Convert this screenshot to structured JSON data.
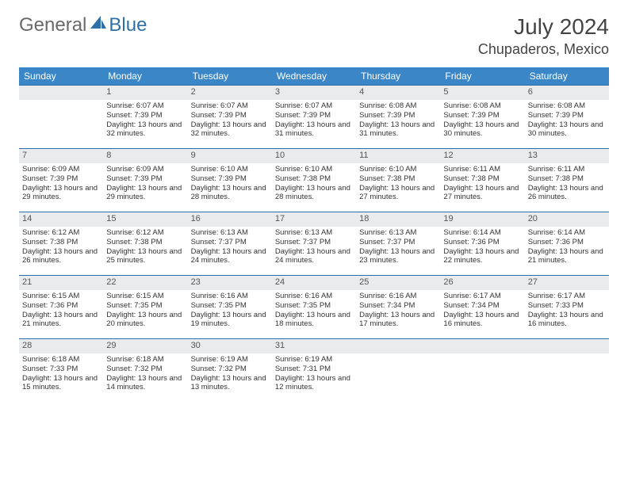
{
  "logo": {
    "word1": "General",
    "word2": "Blue"
  },
  "title": "July 2024",
  "location": "Chupaderos, Mexico",
  "colors": {
    "header_bg": "#3b86c7",
    "header_text": "#ffffff",
    "daynum_bg": "#e9ebec",
    "rule": "#2f6fa7",
    "logo_gray": "#6a6a6a",
    "logo_blue": "#2f6fa7",
    "sail_fill": "#2f6fa7"
  },
  "weekdays": [
    "Sunday",
    "Monday",
    "Tuesday",
    "Wednesday",
    "Thursday",
    "Friday",
    "Saturday"
  ],
  "weeks": [
    [
      {
        "empty": true
      },
      {
        "n": "1",
        "sunrise": "6:07 AM",
        "sunset": "7:39 PM",
        "dl": "13 hours and 32 minutes."
      },
      {
        "n": "2",
        "sunrise": "6:07 AM",
        "sunset": "7:39 PM",
        "dl": "13 hours and 32 minutes."
      },
      {
        "n": "3",
        "sunrise": "6:07 AM",
        "sunset": "7:39 PM",
        "dl": "13 hours and 31 minutes."
      },
      {
        "n": "4",
        "sunrise": "6:08 AM",
        "sunset": "7:39 PM",
        "dl": "13 hours and 31 minutes."
      },
      {
        "n": "5",
        "sunrise": "6:08 AM",
        "sunset": "7:39 PM",
        "dl": "13 hours and 30 minutes."
      },
      {
        "n": "6",
        "sunrise": "6:08 AM",
        "sunset": "7:39 PM",
        "dl": "13 hours and 30 minutes."
      }
    ],
    [
      {
        "n": "7",
        "sunrise": "6:09 AM",
        "sunset": "7:39 PM",
        "dl": "13 hours and 29 minutes."
      },
      {
        "n": "8",
        "sunrise": "6:09 AM",
        "sunset": "7:39 PM",
        "dl": "13 hours and 29 minutes."
      },
      {
        "n": "9",
        "sunrise": "6:10 AM",
        "sunset": "7:39 PM",
        "dl": "13 hours and 28 minutes."
      },
      {
        "n": "10",
        "sunrise": "6:10 AM",
        "sunset": "7:38 PM",
        "dl": "13 hours and 28 minutes."
      },
      {
        "n": "11",
        "sunrise": "6:10 AM",
        "sunset": "7:38 PM",
        "dl": "13 hours and 27 minutes."
      },
      {
        "n": "12",
        "sunrise": "6:11 AM",
        "sunset": "7:38 PM",
        "dl": "13 hours and 27 minutes."
      },
      {
        "n": "13",
        "sunrise": "6:11 AM",
        "sunset": "7:38 PM",
        "dl": "13 hours and 26 minutes."
      }
    ],
    [
      {
        "n": "14",
        "sunrise": "6:12 AM",
        "sunset": "7:38 PM",
        "dl": "13 hours and 26 minutes."
      },
      {
        "n": "15",
        "sunrise": "6:12 AM",
        "sunset": "7:38 PM",
        "dl": "13 hours and 25 minutes."
      },
      {
        "n": "16",
        "sunrise": "6:13 AM",
        "sunset": "7:37 PM",
        "dl": "13 hours and 24 minutes."
      },
      {
        "n": "17",
        "sunrise": "6:13 AM",
        "sunset": "7:37 PM",
        "dl": "13 hours and 24 minutes."
      },
      {
        "n": "18",
        "sunrise": "6:13 AM",
        "sunset": "7:37 PM",
        "dl": "13 hours and 23 minutes."
      },
      {
        "n": "19",
        "sunrise": "6:14 AM",
        "sunset": "7:36 PM",
        "dl": "13 hours and 22 minutes."
      },
      {
        "n": "20",
        "sunrise": "6:14 AM",
        "sunset": "7:36 PM",
        "dl": "13 hours and 21 minutes."
      }
    ],
    [
      {
        "n": "21",
        "sunrise": "6:15 AM",
        "sunset": "7:36 PM",
        "dl": "13 hours and 21 minutes."
      },
      {
        "n": "22",
        "sunrise": "6:15 AM",
        "sunset": "7:35 PM",
        "dl": "13 hours and 20 minutes."
      },
      {
        "n": "23",
        "sunrise": "6:16 AM",
        "sunset": "7:35 PM",
        "dl": "13 hours and 19 minutes."
      },
      {
        "n": "24",
        "sunrise": "6:16 AM",
        "sunset": "7:35 PM",
        "dl": "13 hours and 18 minutes."
      },
      {
        "n": "25",
        "sunrise": "6:16 AM",
        "sunset": "7:34 PM",
        "dl": "13 hours and 17 minutes."
      },
      {
        "n": "26",
        "sunrise": "6:17 AM",
        "sunset": "7:34 PM",
        "dl": "13 hours and 16 minutes."
      },
      {
        "n": "27",
        "sunrise": "6:17 AM",
        "sunset": "7:33 PM",
        "dl": "13 hours and 16 minutes."
      }
    ],
    [
      {
        "n": "28",
        "sunrise": "6:18 AM",
        "sunset": "7:33 PM",
        "dl": "13 hours and 15 minutes."
      },
      {
        "n": "29",
        "sunrise": "6:18 AM",
        "sunset": "7:32 PM",
        "dl": "13 hours and 14 minutes."
      },
      {
        "n": "30",
        "sunrise": "6:19 AM",
        "sunset": "7:32 PM",
        "dl": "13 hours and 13 minutes."
      },
      {
        "n": "31",
        "sunrise": "6:19 AM",
        "sunset": "7:31 PM",
        "dl": "13 hours and 12 minutes."
      },
      {
        "empty": true
      },
      {
        "empty": true
      },
      {
        "empty": true
      }
    ]
  ],
  "labels": {
    "sunrise": "Sunrise:",
    "sunset": "Sunset:",
    "daylight": "Daylight:"
  }
}
